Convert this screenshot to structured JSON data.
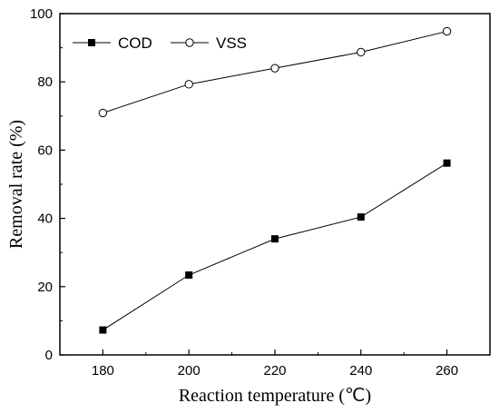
{
  "chart_data": {
    "type": "line",
    "xlabel": "Reaction temperature (℃)",
    "ylabel": "Removal rate (%)",
    "x": [
      180,
      200,
      220,
      240,
      260
    ],
    "x_ticks": [
      "180",
      "200",
      "220",
      "240",
      "260"
    ],
    "y_ticks": [
      "0",
      "20",
      "40",
      "60",
      "80",
      "100"
    ],
    "xlim": [
      170,
      270
    ],
    "ylim": [
      0,
      100
    ],
    "grid": false,
    "legend_position": "top-left",
    "series": [
      {
        "name": "COD",
        "marker": "filled-square",
        "color": "#000000",
        "values": [
          7.3,
          23.4,
          34.0,
          40.4,
          56.2
        ]
      },
      {
        "name": "VSS",
        "marker": "open-circle",
        "color": "#000000",
        "values": [
          70.9,
          79.3,
          84.0,
          88.7,
          94.8
        ]
      }
    ]
  }
}
